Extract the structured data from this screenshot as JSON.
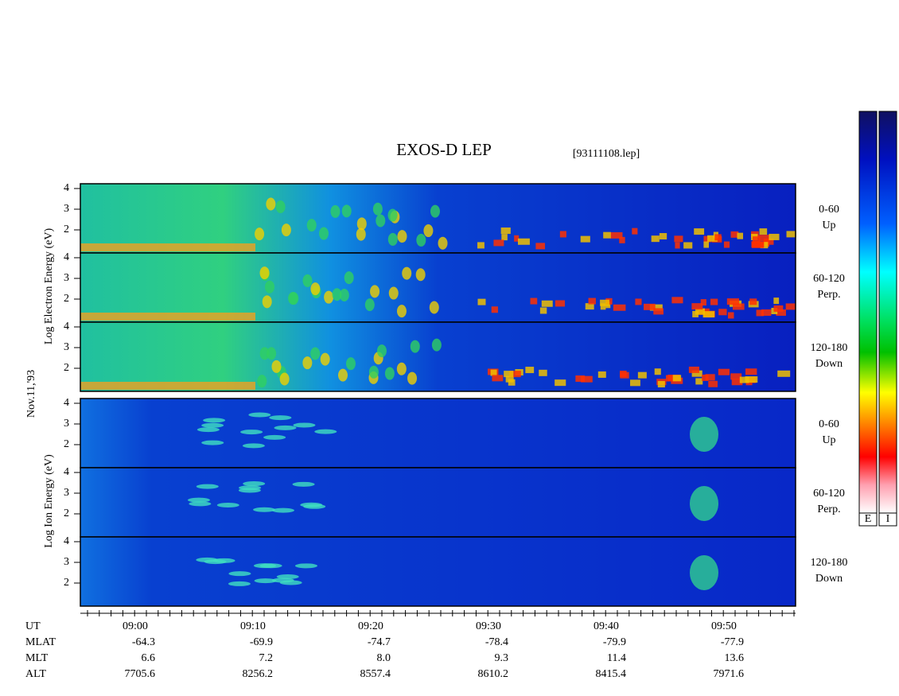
{
  "title": "EXOS-D LEP",
  "file": "[93111108.lep]",
  "date": "Nov.11,'93",
  "groups": [
    {
      "label": "Log Electron Energy (eV)",
      "panels": [
        {
          "range": "0-60",
          "direction": "Up"
        },
        {
          "range": "60-120",
          "direction": "Perp."
        },
        {
          "range": "120-180",
          "direction": "Down"
        }
      ]
    },
    {
      "label": "Log Ion Energy (eV)",
      "panels": [
        {
          "range": "0-60",
          "direction": "Up"
        },
        {
          "range": "60-120",
          "direction": "Perp."
        },
        {
          "range": "120-180",
          "direction": "Down"
        }
      ]
    }
  ],
  "yticks": [
    4,
    3,
    2
  ],
  "time_axis": {
    "rows": [
      {
        "name": "UT",
        "values": [
          "09:00",
          "09:10",
          "09:20",
          "09:30",
          "09:40",
          "09:50"
        ]
      },
      {
        "name": "MLAT",
        "values": [
          "-64.3",
          "-69.9",
          "-74.7",
          "-78.4",
          "-79.9",
          "-77.9"
        ]
      },
      {
        "name": "MLT",
        "values": [
          "6.6",
          "7.2",
          "8.0",
          "9.3",
          "11.4",
          "13.6"
        ]
      },
      {
        "name": "ALT",
        "values": [
          "7705.6",
          "8256.2",
          "8557.4",
          "8610.2",
          "8415.4",
          "7971.6"
        ]
      }
    ]
  },
  "colorbars": [
    "E",
    "I"
  ]
}
